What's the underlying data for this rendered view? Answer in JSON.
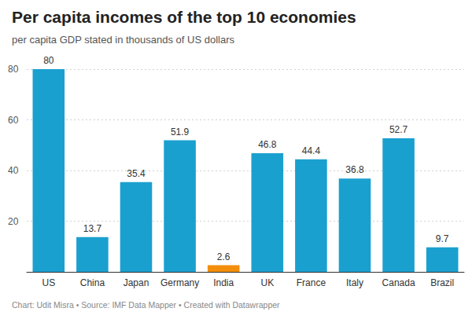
{
  "chart_data": {
    "type": "bar",
    "title": "Per capita incomes of the top 10 economies",
    "subtitle": "per capita GDP stated in thousands of US dollars",
    "caption": "Chart: Udit Misra • Source: IMF Data Mapper • Created with Datawrapper",
    "categories": [
      "US",
      "China",
      "Japan",
      "Germany",
      "India",
      "UK",
      "France",
      "Italy",
      "Canada",
      "Brazil"
    ],
    "values": [
      80,
      13.7,
      35.4,
      51.9,
      2.6,
      46.8,
      44.4,
      36.8,
      52.7,
      9.7
    ],
    "colors": [
      "#1aa0cf",
      "#1aa0cf",
      "#1aa0cf",
      "#1aa0cf",
      "#f28e0c",
      "#1aa0cf",
      "#1aa0cf",
      "#1aa0cf",
      "#1aa0cf",
      "#1aa0cf"
    ],
    "ylim": [
      0,
      80
    ],
    "yticks": [
      20,
      40,
      60,
      80
    ],
    "grid": true,
    "data_labels": true
  }
}
